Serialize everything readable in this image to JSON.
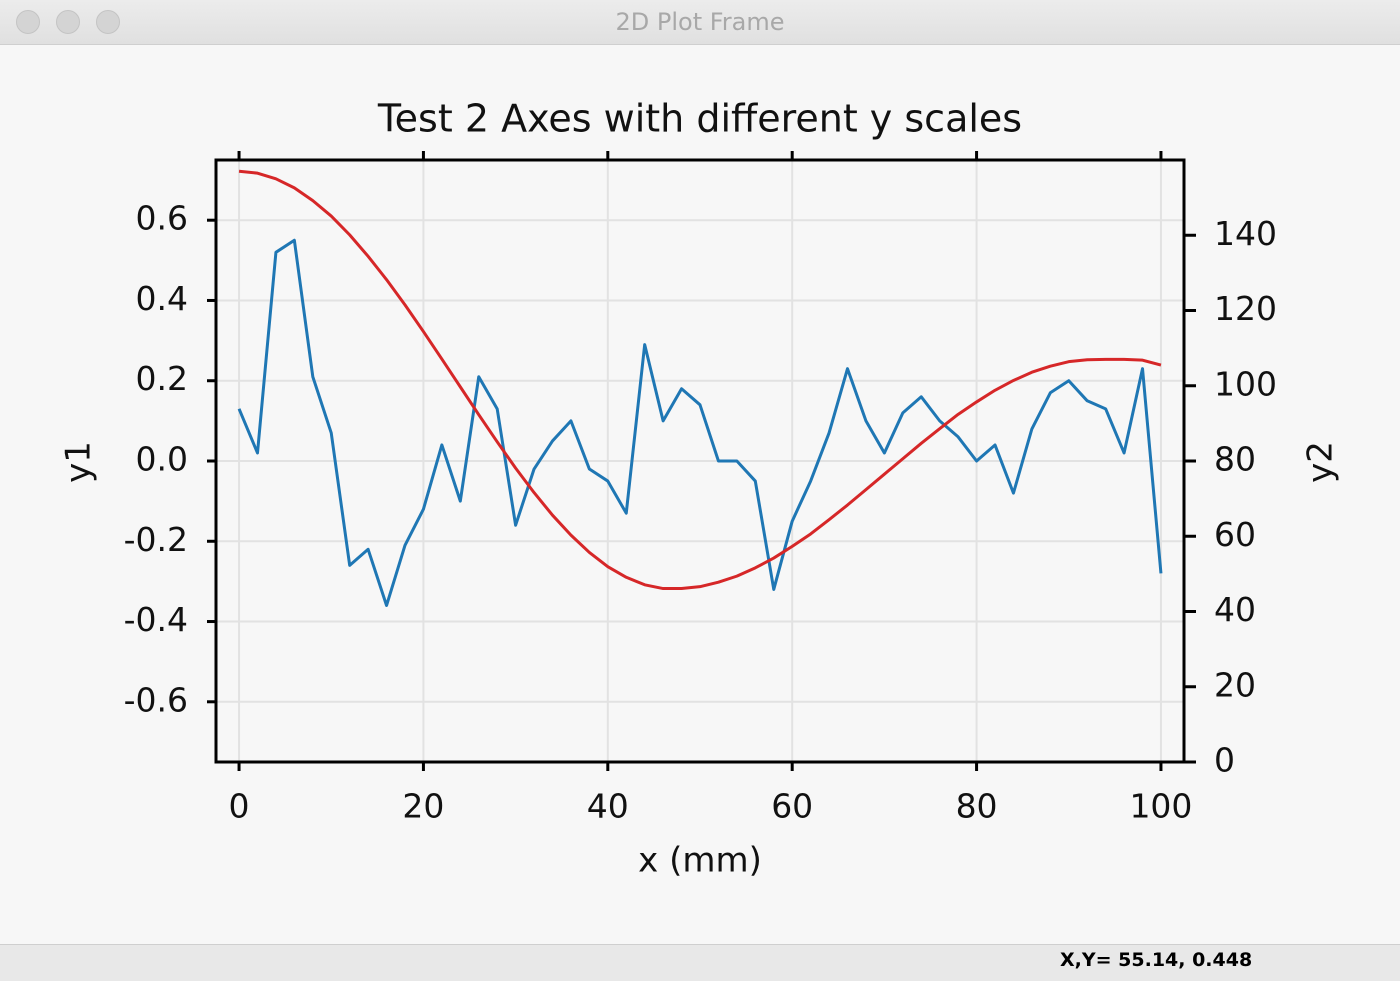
{
  "window": {
    "title": "2D Plot Frame"
  },
  "status": "X,Y= 55.14, 0.448",
  "chart_data": {
    "type": "line",
    "title": "Test 2 Axes with different y scales",
    "xlabel": "x (mm)",
    "ylabel": "y1",
    "y2label": "y2",
    "grid": true,
    "x": [
      0,
      2,
      4,
      6,
      8,
      10,
      12,
      14,
      16,
      18,
      20,
      22,
      24,
      26,
      28,
      30,
      32,
      34,
      36,
      38,
      40,
      42,
      44,
      46,
      48,
      50,
      52,
      54,
      56,
      58,
      60,
      62,
      64,
      66,
      68,
      70,
      72,
      74,
      76,
      78,
      80,
      82,
      84,
      86,
      88,
      90,
      92,
      94,
      96,
      98,
      100
    ],
    "series": [
      {
        "color": "#1f77b4",
        "values": [
          0.13,
          0.02,
          0.52,
          0.55,
          0.21,
          0.07,
          -0.26,
          -0.22,
          -0.36,
          -0.21,
          -0.12,
          0.04,
          -0.1,
          0.21,
          0.13,
          -0.16,
          -0.02,
          0.05,
          0.1,
          -0.02,
          -0.05,
          -0.13,
          0.29,
          0.1,
          0.18,
          0.14,
          0.0,
          0.0,
          -0.05,
          -0.32,
          -0.15,
          -0.05,
          0.07,
          0.23,
          0.1,
          0.02,
          0.12,
          0.16,
          0.1,
          0.06,
          0.0,
          0.04,
          -0.08,
          0.08,
          0.17,
          0.2,
          0.15,
          0.13,
          0.02,
          0.23,
          -0.28
        ]
      },
      {
        "color": "#d62728",
        "axis": "y2",
        "values": [
          157,
          156.5,
          155.0,
          152.6,
          149.2,
          145.1,
          140.1,
          134.4,
          128.2,
          121.5,
          114.4,
          107.1,
          99.7,
          92.3,
          85.1,
          78.1,
          71.6,
          65.6,
          60.3,
          55.7,
          51.9,
          49.1,
          47.1,
          46.1,
          46.1,
          46.6,
          47.8,
          49.4,
          51.6,
          54.2,
          57.3,
          60.6,
          64.4,
          68.3,
          72.4,
          76.5,
          80.6,
          84.7,
          88.6,
          92.4,
          95.7,
          98.8,
          101.4,
          103.6,
          105.2,
          106.4,
          106.9,
          107.0,
          107.0,
          106.8,
          105.5
        ]
      }
    ],
    "xlim": [
      -2.5,
      102.5
    ],
    "xticks": [
      0,
      20,
      40,
      60,
      80,
      100
    ],
    "ylim": [
      -0.75,
      0.75
    ],
    "yticks": [
      -0.6,
      -0.4,
      -0.2,
      {
        "value": 0,
        "label": "0.0"
      },
      0.2,
      0.4,
      0.6
    ],
    "y2lim": [
      0,
      160
    ],
    "y2ticks": [
      0,
      20,
      40,
      60,
      80,
      100,
      120,
      140
    ]
  }
}
